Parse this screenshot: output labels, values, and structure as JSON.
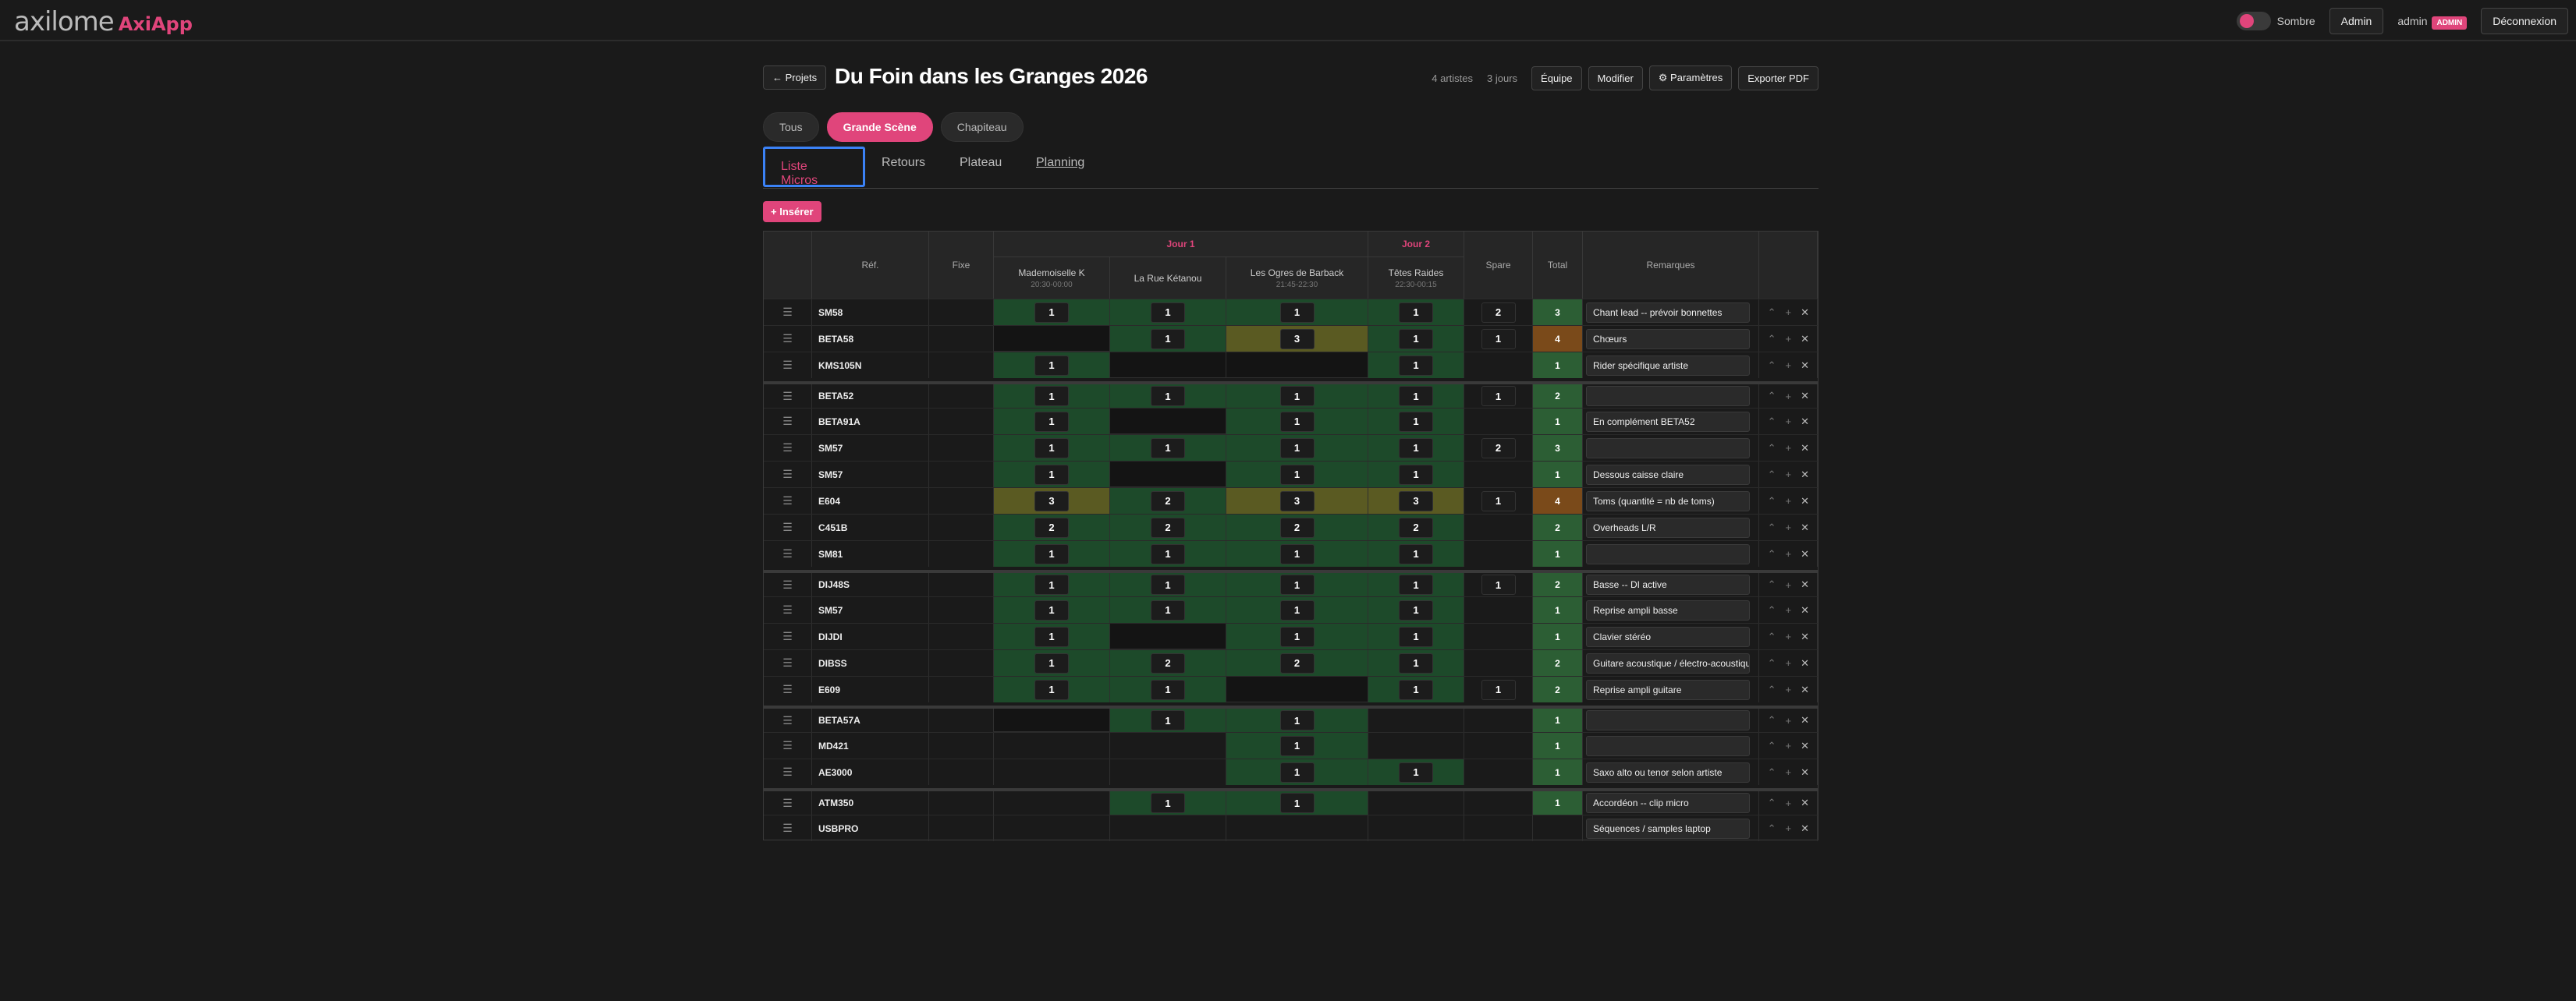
{
  "app": {
    "logo": "axilome",
    "name": "AxiApp"
  },
  "topbar": {
    "theme_label": "Sombre",
    "admin_button": "Admin",
    "user": "admin",
    "role_badge": "ADMIN",
    "logout": "Déconnexion"
  },
  "header": {
    "back": "← Projets",
    "title": "Du Foin dans les Granges 2026",
    "artists_count": "4 artistes",
    "days_count": "3 jours",
    "team": "Équipe",
    "edit": "Modifier",
    "settings": "⚙ Paramètres",
    "export": "Exporter PDF"
  },
  "stages": [
    "Tous",
    "Grande Scène",
    "Chapiteau"
  ],
  "tabs": [
    "Liste Micros",
    "Retours",
    "Plateau",
    "Planning"
  ],
  "insert_button": "+ Insérer",
  "table": {
    "headers": {
      "ref": "Réf.",
      "fixe": "Fixe",
      "spare": "Spare",
      "total": "Total",
      "remarks": "Remarques"
    },
    "days": [
      {
        "label": "Jour 1"
      },
      {
        "label": "Jour 2"
      }
    ],
    "artists": [
      {
        "name": "Mademoiselle K",
        "time": "20:30-00:00"
      },
      {
        "name": "La Rue Kétanou",
        "time": ""
      },
      {
        "name": "Les Ogres de Barback",
        "time": "21:45-22:30"
      },
      {
        "name": "Têtes Raides",
        "time": "22:30-00:15"
      }
    ],
    "rows": [
      {
        "ref": "SM58",
        "cells": [
          "1",
          "1",
          "1",
          "1"
        ],
        "spare": "2",
        "total": "3",
        "remark": "Chant lead -- prévoir bonnettes"
      },
      {
        "ref": "BETA58",
        "cells": [
          "",
          "1",
          "3",
          "1"
        ],
        "spare": "1",
        "total": "4",
        "remark": "Chœurs"
      },
      {
        "ref": "KMS105N",
        "cells": [
          "1",
          "",
          "",
          "1"
        ],
        "spare": "",
        "total": "1",
        "remark": "Rider spécifique artiste"
      },
      {
        "ref": "BETA52",
        "cells": [
          "1",
          "1",
          "1",
          "1"
        ],
        "spare": "1",
        "total": "2",
        "remark": ""
      },
      {
        "ref": "BETA91A",
        "cells": [
          "1",
          "",
          "1",
          "1"
        ],
        "spare": "",
        "total": "1",
        "remark": "En complément BETA52"
      },
      {
        "ref": "SM57",
        "cells": [
          "1",
          "1",
          "1",
          "1"
        ],
        "spare": "2",
        "total": "3",
        "remark": ""
      },
      {
        "ref": "SM57",
        "cells": [
          "1",
          "",
          "1",
          "1"
        ],
        "spare": "",
        "total": "1",
        "remark": "Dessous caisse claire"
      },
      {
        "ref": "E604",
        "cells": [
          "3",
          "2",
          "3",
          "3"
        ],
        "spare": "1",
        "total": "4",
        "remark": "Toms (quantité = nb de toms)"
      },
      {
        "ref": "C451B",
        "cells": [
          "2",
          "2",
          "2",
          "2"
        ],
        "spare": "",
        "total": "2",
        "remark": "Overheads L/R"
      },
      {
        "ref": "SM81",
        "cells": [
          "1",
          "1",
          "1",
          "1"
        ],
        "spare": "",
        "total": "1",
        "remark": ""
      },
      {
        "ref": "DIJ48S",
        "cells": [
          "1",
          "1",
          "1",
          "1"
        ],
        "spare": "1",
        "total": "2",
        "remark": "Basse -- DI active"
      },
      {
        "ref": "SM57",
        "cells": [
          "1",
          "1",
          "1",
          "1"
        ],
        "spare": "",
        "total": "1",
        "remark": "Reprise ampli basse"
      },
      {
        "ref": "DIJDI",
        "cells": [
          "1",
          "",
          "1",
          "1"
        ],
        "spare": "",
        "total": "1",
        "remark": "Clavier stéréo"
      },
      {
        "ref": "DIBSS",
        "cells": [
          "1",
          "2",
          "2",
          "1"
        ],
        "spare": "",
        "total": "2",
        "remark": "Guitare acoustique / électro-acoustique"
      },
      {
        "ref": "E609",
        "cells": [
          "1",
          "1",
          "",
          "1"
        ],
        "spare": "1",
        "total": "2",
        "remark": "Reprise ampli guitare"
      },
      {
        "ref": "BETA57A",
        "cells": [
          "",
          "1",
          "1",
          ""
        ],
        "spare": "",
        "total": "1",
        "remark": ""
      },
      {
        "ref": "MD421",
        "cells": [
          "",
          "",
          "1",
          ""
        ],
        "spare": "",
        "total": "1",
        "remark": ""
      },
      {
        "ref": "AE3000",
        "cells": [
          "",
          "",
          "1",
          "1"
        ],
        "spare": "",
        "total": "1",
        "remark": "Saxo alto ou tenor selon artiste"
      },
      {
        "ref": "ATM350",
        "cells": [
          "",
          "1",
          "1",
          ""
        ],
        "spare": "",
        "total": "1",
        "remark": "Accordéon -- clip micro"
      },
      {
        "ref": "USBPRO",
        "cells": [
          "",
          "",
          "",
          ""
        ],
        "spare": "",
        "total": "",
        "remark": "Séquences / samples laptop"
      }
    ]
  },
  "colors": {
    "accent": "#e0457b",
    "active_cell": "#1d4a2a",
    "highlight_cell": "#5a5a22",
    "total_high": "#7a4a1a"
  }
}
